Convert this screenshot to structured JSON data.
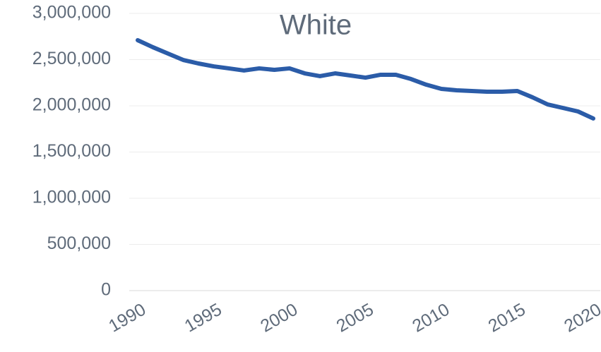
{
  "chart_data": {
    "type": "line",
    "title": "White",
    "x": [
      1990,
      1991,
      1992,
      1993,
      1994,
      1995,
      1996,
      1997,
      1998,
      1999,
      2000,
      2001,
      2002,
      2003,
      2004,
      2005,
      2006,
      2007,
      2008,
      2009,
      2010,
      2011,
      2012,
      2013,
      2014,
      2015,
      2016,
      2017,
      2018,
      2019,
      2020
    ],
    "series": [
      {
        "name": "White",
        "color": "#2b5ca8",
        "values": [
          2710000,
          2634000,
          2565000,
          2496000,
          2458000,
          2427000,
          2405000,
          2382000,
          2405000,
          2389000,
          2405000,
          2351000,
          2321000,
          2351000,
          2328000,
          2305000,
          2336000,
          2336000,
          2290000,
          2229000,
          2183000,
          2168000,
          2160000,
          2153000,
          2153000,
          2160000,
          2092000,
          2015000,
          1977000,
          1939000,
          1863000
        ]
      }
    ],
    "xlim": [
      1990,
      2020
    ],
    "xticks": [
      1990,
      1995,
      2000,
      2005,
      2010,
      2015,
      2020
    ],
    "ylim": [
      0,
      3000000
    ],
    "yticks": [
      0,
      {
        "value": 500000,
        "label": "500,000"
      },
      {
        "value": 1000000,
        "label": "1,000,000"
      },
      {
        "value": 1500000,
        "label": "1,500,000"
      },
      {
        "value": 2000000,
        "label": "2,000,000"
      },
      {
        "value": 2500000,
        "label": "2,500,000"
      },
      {
        "value": 3000000,
        "label": "3,000,000"
      }
    ],
    "grid": true
  }
}
